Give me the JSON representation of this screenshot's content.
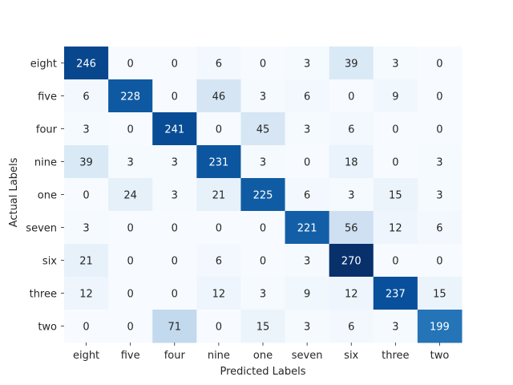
{
  "chart_data": {
    "type": "heatmap",
    "xlabel": "Predicted Labels",
    "ylabel": "Actual Labels",
    "x_categories": [
      "eight",
      "five",
      "four",
      "nine",
      "one",
      "seven",
      "six",
      "three",
      "two"
    ],
    "y_categories": [
      "eight",
      "five",
      "four",
      "nine",
      "one",
      "seven",
      "six",
      "three",
      "two"
    ],
    "values": [
      [
        246,
        0,
        0,
        6,
        0,
        3,
        39,
        3,
        0
      ],
      [
        6,
        228,
        0,
        46,
        3,
        6,
        0,
        9,
        0
      ],
      [
        3,
        0,
        241,
        0,
        45,
        3,
        6,
        0,
        0
      ],
      [
        39,
        3,
        3,
        231,
        3,
        0,
        18,
        0,
        3
      ],
      [
        0,
        24,
        3,
        21,
        225,
        6,
        3,
        15,
        3
      ],
      [
        3,
        0,
        0,
        0,
        0,
        221,
        56,
        12,
        6
      ],
      [
        21,
        0,
        0,
        6,
        0,
        3,
        270,
        0,
        0
      ],
      [
        12,
        0,
        0,
        12,
        3,
        9,
        12,
        237,
        15
      ],
      [
        0,
        0,
        71,
        0,
        15,
        3,
        6,
        3,
        199
      ]
    ],
    "colormap": "Blues",
    "value_range": [
      0,
      270
    ],
    "colorbar": false,
    "grid": false
  }
}
